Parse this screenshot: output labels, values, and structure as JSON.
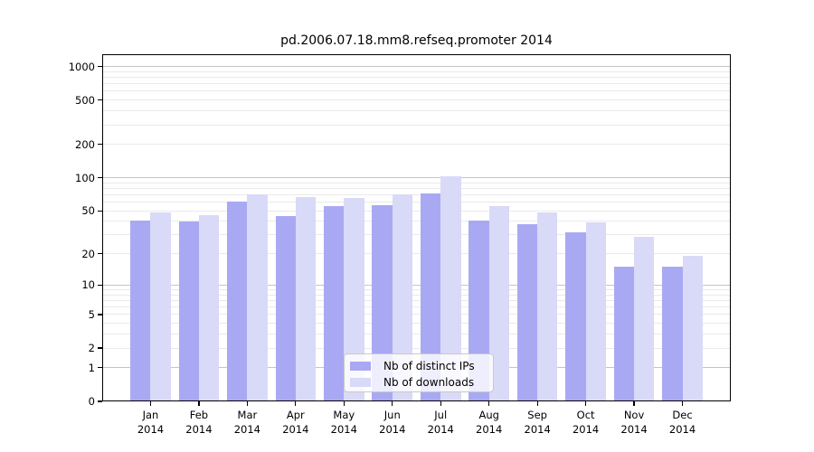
{
  "chart_data": {
    "type": "bar",
    "title": "pd.2006.07.18.mm8.refseq.promoter 2014",
    "categories": [
      "Jan",
      "Feb",
      "Mar",
      "Apr",
      "May",
      "Jun",
      "Jul",
      "Aug",
      "Sep",
      "Oct",
      "Nov",
      "Dec"
    ],
    "x_year": "2014",
    "series": [
      {
        "name": "Nb of distinct IPs",
        "color": "#a9a9f3",
        "values": [
          41,
          40,
          61,
          45,
          55,
          56,
          72,
          41,
          38,
          32,
          15,
          15
        ]
      },
      {
        "name": "Nb of downloads",
        "color": "#d9d9f8",
        "values": [
          48,
          46,
          71,
          67,
          65,
          71,
          103,
          55,
          48,
          39,
          29,
          19
        ]
      }
    ],
    "y_axis": {
      "scale": "log(1+x)",
      "tick_values": [
        0,
        1,
        2,
        5,
        10,
        20,
        50,
        100,
        200,
        500,
        1000
      ],
      "range": [
        0,
        1200
      ]
    },
    "legend": {
      "position": "bottom-center",
      "entries": [
        "Nb of distinct IPs",
        "Nb of downloads"
      ]
    },
    "grid": true,
    "colors": {
      "background": "#ffffff",
      "axis": "#000000",
      "major_gridline": "#c5c5c5",
      "minor_gridline": "#eaeaea"
    }
  }
}
